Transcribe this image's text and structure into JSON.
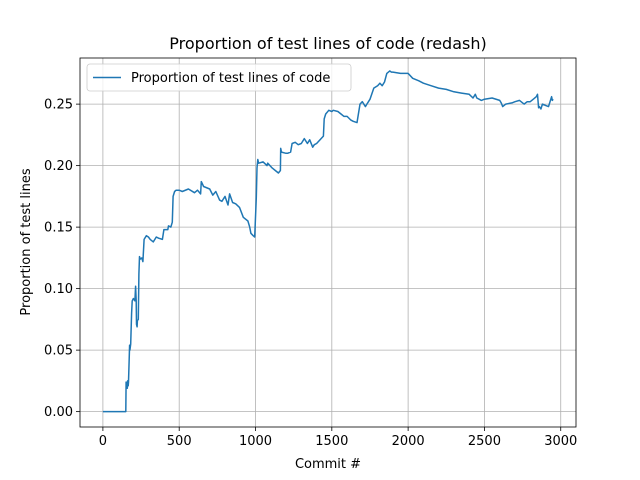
{
  "chart_data": {
    "type": "line",
    "title": "Proportion of test lines of code (redash)",
    "xlabel": "Commit #",
    "ylabel": "Proportion of test lines",
    "xlim": [
      -150,
      3100
    ],
    "ylim": [
      -0.0125,
      0.2875
    ],
    "xticks": [
      0,
      500,
      1000,
      1500,
      2000,
      2500,
      3000
    ],
    "xtick_labels": [
      "0",
      "500",
      "1000",
      "1500",
      "2000",
      "2500",
      "3000"
    ],
    "yticks": [
      0.0,
      0.05,
      0.1,
      0.15,
      0.2,
      0.25
    ],
    "ytick_labels": [
      "0.00",
      "0.05",
      "0.10",
      "0.15",
      "0.20",
      "0.25"
    ],
    "grid": true,
    "legend": "top-left",
    "series": [
      {
        "name": "Proportion of test lines of code",
        "color": "#1f77b4",
        "x": [
          0,
          150,
          152,
          157,
          160,
          162,
          166,
          168,
          175,
          177,
          182,
          188,
          192,
          200,
          205,
          210,
          214,
          218,
          220,
          224,
          226,
          232,
          236,
          240,
          245,
          255,
          262,
          270,
          285,
          298,
          310,
          330,
          350,
          365,
          390,
          400,
          425,
          430,
          445,
          455,
          460,
          470,
          480,
          500,
          520,
          560,
          600,
          620,
          640,
          645,
          660,
          700,
          720,
          740,
          765,
          780,
          800,
          820,
          830,
          850,
          870,
          895,
          920,
          950,
          962,
          970,
          985,
          995,
          1005,
          1010,
          1015,
          1020,
          1050,
          1075,
          1080,
          1110,
          1130,
          1150,
          1163,
          1165,
          1170,
          1200,
          1210,
          1230,
          1240,
          1260,
          1280,
          1300,
          1320,
          1340,
          1355,
          1375,
          1385,
          1400,
          1430,
          1445,
          1450,
          1460,
          1480,
          1500,
          1510,
          1540,
          1560,
          1580,
          1600,
          1625,
          1640,
          1665,
          1685,
          1700,
          1720,
          1730,
          1750,
          1775,
          1800,
          1815,
          1830,
          1845,
          1860,
          1880,
          1890,
          1900,
          1950,
          2000,
          2030,
          2070,
          2100,
          2150,
          2200,
          2250,
          2300,
          2350,
          2400,
          2425,
          2440,
          2450,
          2480,
          2500,
          2550,
          2600,
          2610,
          2620,
          2640,
          2680,
          2700,
          2730,
          2760,
          2780,
          2800,
          2820,
          2840,
          2848,
          2855,
          2860,
          2870,
          2880,
          2900,
          2920,
          2940,
          2945,
          2950
        ],
        "y": [
          0.0,
          0.0,
          0.024,
          0.023,
          0.019,
          0.025,
          0.021,
          0.024,
          0.054,
          0.05,
          0.055,
          0.08,
          0.09,
          0.092,
          0.091,
          0.09,
          0.102,
          0.09,
          0.071,
          0.069,
          0.074,
          0.075,
          0.112,
          0.126,
          0.124,
          0.125,
          0.122,
          0.14,
          0.143,
          0.142,
          0.14,
          0.138,
          0.142,
          0.141,
          0.14,
          0.148,
          0.148,
          0.151,
          0.15,
          0.154,
          0.175,
          0.179,
          0.18,
          0.18,
          0.179,
          0.181,
          0.178,
          0.18,
          0.177,
          0.187,
          0.183,
          0.181,
          0.176,
          0.179,
          0.172,
          0.171,
          0.175,
          0.168,
          0.177,
          0.17,
          0.169,
          0.166,
          0.158,
          0.155,
          0.15,
          0.145,
          0.143,
          0.142,
          0.174,
          0.198,
          0.205,
          0.202,
          0.203,
          0.2,
          0.202,
          0.198,
          0.196,
          0.194,
          0.196,
          0.214,
          0.211,
          0.21,
          0.21,
          0.211,
          0.218,
          0.219,
          0.217,
          0.218,
          0.222,
          0.218,
          0.221,
          0.215,
          0.217,
          0.218,
          0.222,
          0.224,
          0.238,
          0.242,
          0.245,
          0.244,
          0.245,
          0.244,
          0.242,
          0.24,
          0.24,
          0.237,
          0.236,
          0.235,
          0.25,
          0.252,
          0.248,
          0.25,
          0.254,
          0.263,
          0.265,
          0.267,
          0.265,
          0.268,
          0.275,
          0.277,
          0.276,
          0.276,
          0.275,
          0.275,
          0.271,
          0.269,
          0.267,
          0.265,
          0.263,
          0.262,
          0.26,
          0.259,
          0.258,
          0.255,
          0.258,
          0.255,
          0.253,
          0.254,
          0.255,
          0.253,
          0.251,
          0.248,
          0.25,
          0.251,
          0.252,
          0.253,
          0.25,
          0.252,
          0.252,
          0.254,
          0.256,
          0.258,
          0.247,
          0.248,
          0.246,
          0.25,
          0.249,
          0.248,
          0.256,
          0.253,
          0.254
        ]
      }
    ]
  }
}
